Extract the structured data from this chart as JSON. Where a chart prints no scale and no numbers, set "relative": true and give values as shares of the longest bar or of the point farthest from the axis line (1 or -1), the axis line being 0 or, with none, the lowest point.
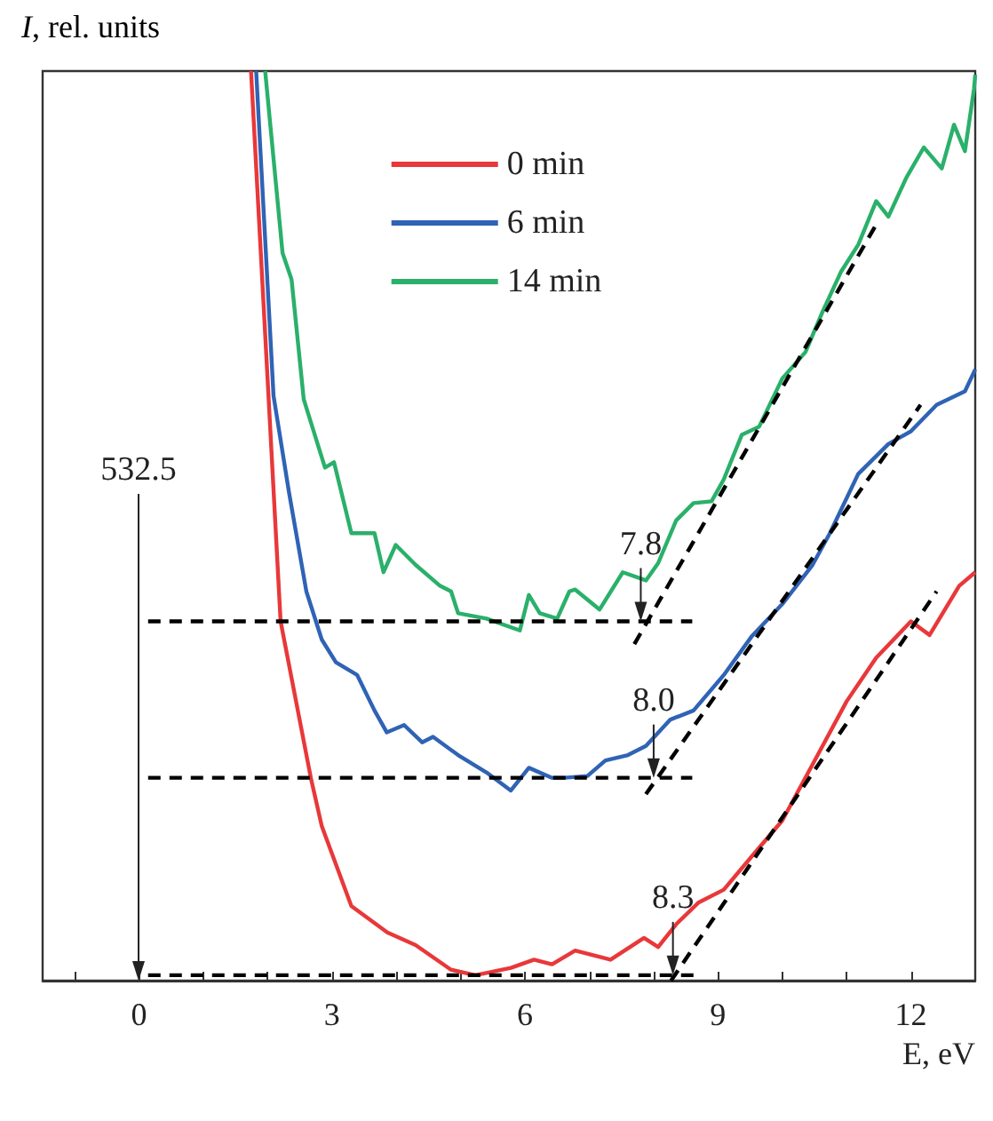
{
  "chart_data": {
    "type": "line",
    "relative": true,
    "xlabel": "E, eV",
    "ylabel": "I, rel. units",
    "xlim": [
      -1.5,
      13
    ],
    "xticks": [
      {
        "value": -1,
        "label": null
      },
      0,
      {
        "value": 1,
        "label": null
      },
      {
        "value": 2,
        "label": null
      },
      3,
      {
        "value": 4,
        "label": null
      },
      {
        "value": 5,
        "label": null
      },
      6,
      {
        "value": 7,
        "label": null
      },
      {
        "value": 8,
        "label": null
      },
      9,
      {
        "value": 10,
        "label": null
      },
      {
        "value": 11,
        "label": null
      },
      12
    ],
    "grid": false,
    "legend": "top",
    "marker": "none",
    "line_style": "solid",
    "series": [
      {
        "name": "0 min",
        "color": "#e8383a",
        "x": [
          1.74,
          2.2,
          2.67,
          2.84,
          3.3,
          3.86,
          4.3,
          4.85,
          5.23,
          5.78,
          6.14,
          6.42,
          6.78,
          7.33,
          7.85,
          8.07,
          8.35,
          8.7,
          9.09,
          9.53,
          10.0,
          10.55,
          11.0,
          11.46,
          12.0,
          12.29,
          12.75,
          13.0
        ],
        "values": [
          1,
          0.395,
          0.223,
          0.17,
          0.082,
          0.053,
          0.039,
          0.012,
          0.006,
          0.014,
          0.023,
          0.018,
          0.033,
          0.023,
          0.047,
          0.037,
          0.062,
          0.086,
          0.1,
          0.137,
          0.176,
          0.248,
          0.307,
          0.355,
          0.395,
          0.38,
          0.434,
          0.449
        ]
      },
      {
        "name": "6 min",
        "color": "#2f63b5",
        "x": [
          1.82,
          2.09,
          2.33,
          2.6,
          2.84,
          3.06,
          3.39,
          3.66,
          3.85,
          4.12,
          4.4,
          4.57,
          4.96,
          5.4,
          5.78,
          6.06,
          6.42,
          6.61,
          6.97,
          7.25,
          7.6,
          7.88,
          8.26,
          8.62,
          9.09,
          9.53,
          10.0,
          10.47,
          10.74,
          11.18,
          11.65,
          12.0,
          12.4,
          12.84,
          13.0
        ],
        "values": [
          1,
          0.643,
          0.537,
          0.428,
          0.375,
          0.35,
          0.336,
          0.297,
          0.273,
          0.281,
          0.262,
          0.268,
          0.248,
          0.229,
          0.209,
          0.234,
          0.223,
          0.223,
          0.225,
          0.242,
          0.248,
          0.258,
          0.287,
          0.297,
          0.336,
          0.379,
          0.414,
          0.457,
          0.492,
          0.557,
          0.59,
          0.604,
          0.633,
          0.648,
          0.672
        ]
      },
      {
        "name": "14 min",
        "color": "#2ab06a",
        "x": [
          1.96,
          2.23,
          2.37,
          2.56,
          2.89,
          3.03,
          3.3,
          3.66,
          3.8,
          3.99,
          4.3,
          4.68,
          4.85,
          4.96,
          5.4,
          5.92,
          6.06,
          6.23,
          6.5,
          6.69,
          6.78,
          7.16,
          7.52,
          7.88,
          8.07,
          8.35,
          8.62,
          8.9,
          9.09,
          9.37,
          9.64,
          10.0,
          10.36,
          10.63,
          10.91,
          11.18,
          11.46,
          11.65,
          11.93,
          12.2,
          12.48,
          12.67,
          12.84,
          12.98,
          13.0
        ],
        "values": [
          1,
          0.8,
          0.771,
          0.639,
          0.564,
          0.57,
          0.492,
          0.492,
          0.449,
          0.479,
          0.457,
          0.434,
          0.428,
          0.404,
          0.398,
          0.385,
          0.424,
          0.404,
          0.398,
          0.428,
          0.43,
          0.408,
          0.449,
          0.44,
          0.459,
          0.506,
          0.525,
          0.527,
          0.551,
          0.6,
          0.609,
          0.662,
          0.691,
          0.736,
          0.779,
          0.809,
          0.857,
          0.84,
          0.883,
          0.916,
          0.893,
          0.941,
          0.912,
          0.98,
          0.996
        ]
      },
      {
        "type": "line",
        "color": "#000000",
        "line_style": "dashed",
        "x": [
          0.14,
          8.6
        ],
        "values": [
          0.395,
          0.395
        ]
      },
      {
        "type": "line",
        "color": "#000000",
        "line_style": "dashed",
        "x": [
          0.14,
          8.6
        ],
        "values": [
          0.223,
          0.223
        ]
      },
      {
        "type": "line",
        "color": "#000000",
        "line_style": "dashed",
        "x": [
          0.14,
          8.7
        ],
        "values": [
          0.006,
          0.006
        ]
      },
      {
        "type": "line",
        "color": "#000000",
        "line_style": "dashed",
        "x": [
          7.7,
          11.45
        ],
        "values": [
          0.37,
          0.83
        ]
      },
      {
        "type": "line",
        "color": "#000000",
        "line_style": "dashed",
        "x": [
          7.88,
          12.15
        ],
        "values": [
          0.205,
          0.633
        ]
      },
      {
        "type": "line",
        "color": "#000000",
        "line_style": "dashed",
        "x": [
          8.27,
          12.4
        ],
        "values": [
          0.0,
          0.428
        ]
      }
    ],
    "annotations": [
      "532.5",
      {
        "text": "7.8",
        "x": 7.8,
        "y": 0.395
      },
      {
        "text": "8.0",
        "x": 8.0,
        "y": 0.223
      },
      {
        "text": "8.3",
        "x": 8.3,
        "y": 0.006
      }
    ]
  }
}
